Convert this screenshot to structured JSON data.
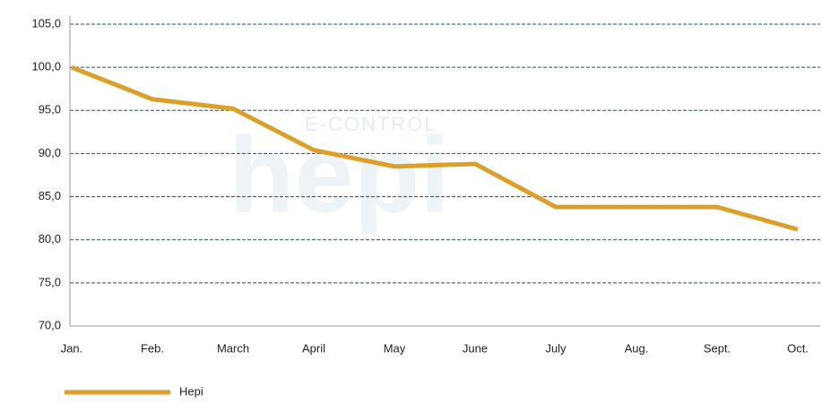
{
  "chart_data": {
    "type": "line",
    "watermark": [
      "E-CONTROL",
      "hepi"
    ],
    "categories": [
      "Jan.",
      "Feb.",
      "March",
      "April",
      "May",
      "June",
      "July",
      "Aug.",
      "Sept.",
      "Oct."
    ],
    "series": [
      {
        "name": "Hepi",
        "color": "#dca02a",
        "values": [
          100.0,
          96.3,
          95.2,
          90.4,
          88.5,
          88.8,
          83.8,
          83.8,
          83.8,
          81.2
        ]
      }
    ],
    "ylim": [
      70,
      105
    ],
    "yticks": [
      {
        "value": 70,
        "label": "70,0"
      },
      {
        "value": 75,
        "label": "75,0"
      },
      {
        "value": 80,
        "label": "80,0"
      },
      {
        "value": 85,
        "label": "85,0"
      },
      {
        "value": 90,
        "label": "90,0"
      },
      {
        "value": 95,
        "label": "95,0"
      },
      {
        "value": 100,
        "label": "100,0"
      },
      {
        "value": 105,
        "label": "105,0"
      }
    ],
    "grid": true,
    "legend": "bottom-left"
  }
}
